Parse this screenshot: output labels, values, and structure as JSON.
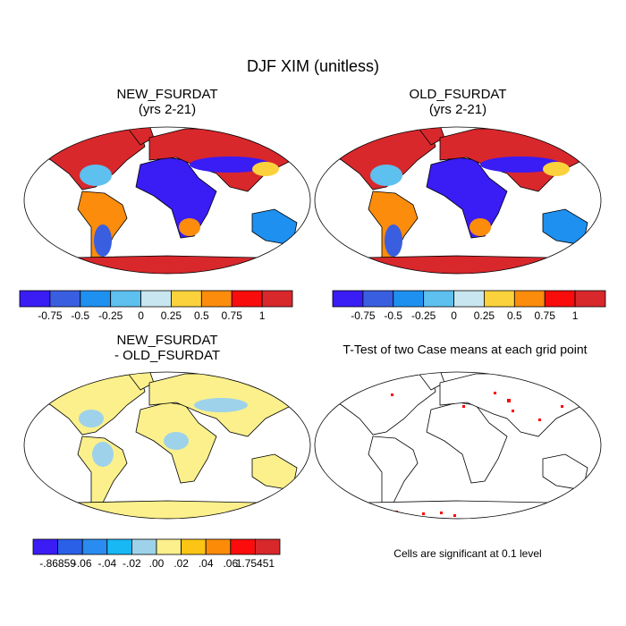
{
  "title": "DJF XIM (unitless)",
  "panels": [
    {
      "title": "NEW_FSURDAT",
      "subtitle": "(yrs 2-21)"
    },
    {
      "title": "OLD_FSURDAT",
      "subtitle": "(yrs 2-21)"
    },
    {
      "title": "NEW_FSURDAT",
      "subtitle": "- OLD_FSURDAT"
    },
    {
      "title": "T-Test of two Case means at each grid point"
    }
  ],
  "colorbars": [
    {
      "colors": [
        "#3a1cf5",
        "#3a5ee0",
        "#1e90f0",
        "#5ec0ee",
        "#c8e6f0",
        "#fcd23c",
        "#fb8c0c",
        "#f80c0c",
        "#d8282c"
      ],
      "labels": [
        "-0.75",
        "-0.5",
        "-0.25",
        "0",
        "0.25",
        "0.5",
        "0.75",
        "1"
      ]
    },
    {
      "colors": [
        "#3a1cf5",
        "#3a5ee0",
        "#1e90f0",
        "#5ec0ee",
        "#c8e6f0",
        "#fcd23c",
        "#fb8c0c",
        "#f80c0c",
        "#d8282c"
      ],
      "labels": [
        "-0.75",
        "-0.5",
        "-0.25",
        "0",
        "0.25",
        "0.5",
        "0.75",
        "1"
      ]
    },
    {
      "colors": [
        "#3c1cf5",
        "#2a60e8",
        "#2a8cf0",
        "#18b8f5",
        "#9ed2ea",
        "#fbf08c",
        "#fcc414",
        "#fc8c08",
        "#fc0c0c",
        "#d8282c"
      ],
      "labels": [
        "-.86859",
        "-.06",
        "-.04",
        "-.02",
        ".00",
        ".02",
        ".04",
        ".06",
        "1.75451"
      ]
    }
  ],
  "note": "Cells are significant at 0.1 level"
}
